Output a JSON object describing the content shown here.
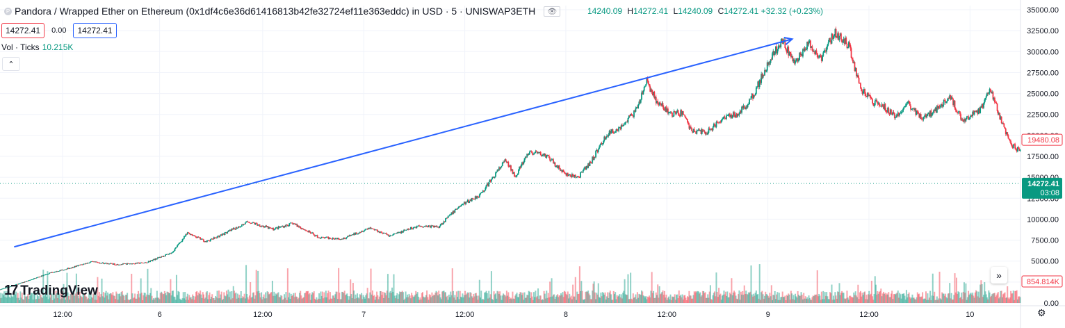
{
  "header": {
    "title": "Pandora / Wrapped Ether on Ethereum (0x1df4c6e36d61416813b42fe32724ef11e363eddc) in USD · 5 · UNISWAP3ETH",
    "logo_letter": "P",
    "ohlc": {
      "open": "14240.09",
      "high_label": "H",
      "high": "14272.41",
      "low_label": "L",
      "low": "14240.09",
      "close_label": "C",
      "close": "14272.41",
      "change": "+32.32 (+0.23%)"
    }
  },
  "price_boxes": {
    "bid": "14272.41",
    "spread": "0.00",
    "ask": "14272.41"
  },
  "volume": {
    "label": "Vol · Ticks",
    "value": "10.215K"
  },
  "branding": {
    "name": "TradingView",
    "mark": "17"
  },
  "colors": {
    "up": "#089981",
    "down": "#f23645",
    "trendline": "#2962ff",
    "grid": "#f0f3fa",
    "current": "#089981"
  },
  "icons": {
    "collapse": "chevron-up-icon",
    "go_to_realtime": "double-chevron-right-icon",
    "settings": "gear-icon"
  },
  "chart_data": {
    "type": "candlestick",
    "title": "Pandora / Wrapped Ether on Ethereum (0x1df4c6e36d61416813b42fe32724ef11e363eddc) in USD · 5 · UNISWAP3ETH",
    "y_tick_labels": [
      "35000.00",
      "32500.00",
      "30000.00",
      "27500.00",
      "25000.00",
      "22500.00",
      "20000.00",
      "17500.00",
      "15000.00",
      "12500.00",
      "10000.00",
      "7500.00",
      "5000.00",
      "2500.00",
      "0.00"
    ],
    "y_ticks": [
      35000,
      32500,
      30000,
      27500,
      25000,
      22500,
      20000,
      17500,
      15000,
      12500,
      10000,
      7500,
      5000,
      2500,
      0
    ],
    "ylim": [
      0,
      35500
    ],
    "x_tick_labels": [
      "12:00",
      "6",
      "12:00",
      "7",
      "12:00",
      "8",
      "12:00",
      "9",
      "12:00",
      "10"
    ],
    "x_ticks": [
      0.51,
      0.99,
      1.5,
      2.0,
      2.5,
      3.0,
      3.5,
      4.0,
      4.5,
      5.0
    ],
    "xlim": [
      0.2,
      5.25
    ],
    "series_anchors": [
      [
        0.2,
        1600
      ],
      [
        0.32,
        2500
      ],
      [
        0.45,
        3600
      ],
      [
        0.55,
        4200
      ],
      [
        0.65,
        4900
      ],
      [
        0.78,
        4600
      ],
      [
        0.92,
        4800
      ],
      [
        1.05,
        6000
      ],
      [
        1.13,
        8400
      ],
      [
        1.22,
        7300
      ],
      [
        1.33,
        8500
      ],
      [
        1.43,
        9700
      ],
      [
        1.55,
        8800
      ],
      [
        1.65,
        9500
      ],
      [
        1.78,
        7800
      ],
      [
        1.9,
        7700
      ],
      [
        2.03,
        9000
      ],
      [
        2.13,
        8000
      ],
      [
        2.27,
        9200
      ],
      [
        2.37,
        9100
      ],
      [
        2.47,
        11500
      ],
      [
        2.58,
        13000
      ],
      [
        2.7,
        17000
      ],
      [
        2.75,
        15200
      ],
      [
        2.82,
        18000
      ],
      [
        2.9,
        17600
      ],
      [
        2.95,
        16500
      ],
      [
        3.0,
        15300
      ],
      [
        3.06,
        15000
      ],
      [
        3.12,
        16700
      ],
      [
        3.2,
        20000
      ],
      [
        3.28,
        21200
      ],
      [
        3.35,
        23000
      ],
      [
        3.4,
        26500
      ],
      [
        3.45,
        24000
      ],
      [
        3.52,
        22500
      ],
      [
        3.58,
        22700
      ],
      [
        3.62,
        20600
      ],
      [
        3.7,
        20400
      ],
      [
        3.78,
        22200
      ],
      [
        3.86,
        22700
      ],
      [
        3.92,
        24500
      ],
      [
        3.99,
        28000
      ],
      [
        4.07,
        31500
      ],
      [
        4.13,
        28500
      ],
      [
        4.2,
        31000
      ],
      [
        4.26,
        29000
      ],
      [
        4.33,
        32400
      ],
      [
        4.4,
        30700
      ],
      [
        4.46,
        25500
      ],
      [
        4.52,
        24000
      ],
      [
        4.57,
        23500
      ],
      [
        4.63,
        22200
      ],
      [
        4.69,
        23800
      ],
      [
        4.76,
        22200
      ],
      [
        4.82,
        22800
      ],
      [
        4.9,
        24800
      ],
      [
        4.96,
        21800
      ],
      [
        5.05,
        23000
      ],
      [
        5.1,
        25400
      ],
      [
        5.14,
        22800
      ],
      [
        5.2,
        19000
      ],
      [
        5.24,
        18200
      ]
    ],
    "current_price": 14272.41,
    "current_price_label": "14272.41",
    "current_countdown": "03:08",
    "secondary_price_label": "19480.08",
    "secondary_price": 19480.08,
    "volume_last_label": "854.814K",
    "trendline": {
      "start": [
        0.27,
        6700
      ],
      "end": [
        4.12,
        31500
      ]
    },
    "grid": true
  }
}
